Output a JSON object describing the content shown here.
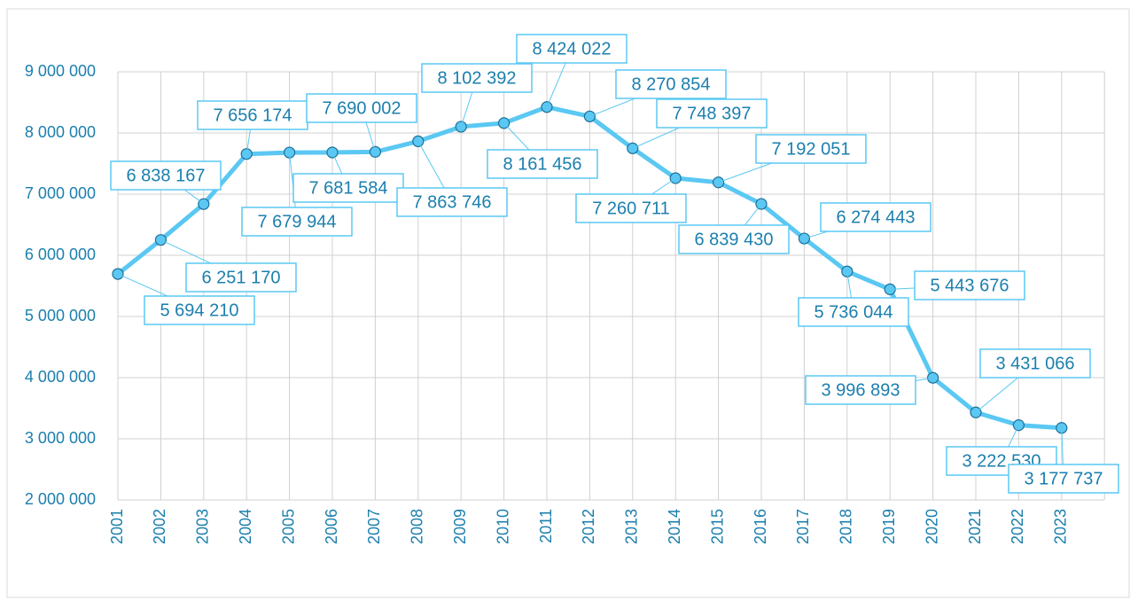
{
  "chart_data": {
    "type": "line",
    "categories": [
      "2001",
      "2002",
      "2003",
      "2004",
      "2005",
      "2006",
      "2007",
      "2008",
      "2009",
      "2010",
      "2011",
      "2012",
      "2013",
      "2014",
      "2015",
      "2016",
      "2017",
      "2018",
      "2019",
      "2020",
      "2021",
      "2022",
      "2023"
    ],
    "series": [
      {
        "color": "#5ac8f3",
        "values": [
          5694210,
          6251170,
          6838167,
          7656174,
          7679944,
          7681584,
          7690002,
          7863746,
          8102392,
          8161456,
          8424022,
          8270854,
          7748397,
          7260711,
          7192051,
          6839430,
          6274443,
          5736044,
          5443676,
          3996893,
          3431066,
          3222530,
          3177737
        ],
        "value_labels": [
          "5 694 210",
          "6 251 170",
          "6 838 167",
          "7 656 174",
          "7 679 944",
          "7 681 584",
          "7 690 002",
          "7 863 746",
          "8 102 392",
          "8 161 456",
          "8 424 022",
          "8 270 854",
          "7 748 397",
          "7 260 711",
          "7 192 051",
          "6 839 430",
          "6 274 443",
          "5 736 044",
          "5 443 676",
          "3 996 893",
          "3 431 066",
          "3 222 530",
          "3 177 737"
        ]
      }
    ],
    "ylim": [
      2000000,
      9000000
    ],
    "yticks": [
      {
        "value": 2000000,
        "label": "2 000 000"
      },
      {
        "value": 3000000,
        "label": "3 000 000"
      },
      {
        "value": 4000000,
        "label": "4 000 000"
      },
      {
        "value": 5000000,
        "label": "5 000 000"
      },
      {
        "value": 6000000,
        "label": "6 000 000"
      },
      {
        "value": 7000000,
        "label": "7 000 000"
      },
      {
        "value": 8000000,
        "label": "8 000 000"
      },
      {
        "value": 9000000,
        "label": "9 000 000"
      }
    ],
    "grid": true
  }
}
